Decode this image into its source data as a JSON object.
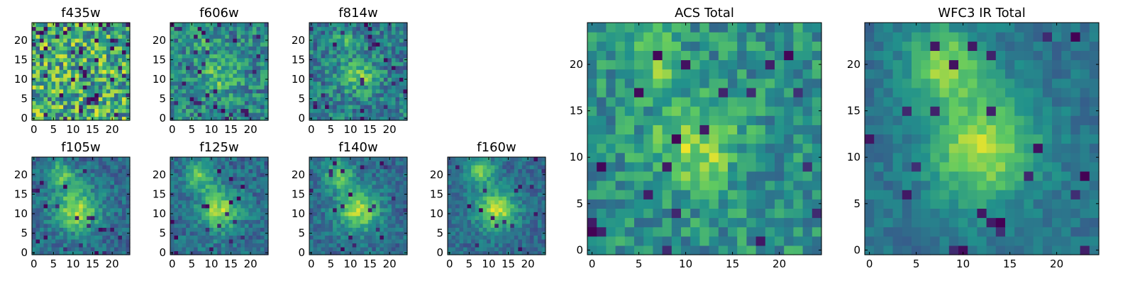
{
  "figure": {
    "colormap": [
      "#440154",
      "#3b528b",
      "#21918c",
      "#5ec962",
      "#fde725"
    ]
  },
  "chart_data": [
    {
      "type": "heatmap",
      "title": "f435w",
      "grid": [
        25,
        25
      ],
      "xticks": [
        "0",
        "5",
        "10",
        "15",
        "20"
      ],
      "yticks": [
        "0",
        "5",
        "10",
        "15",
        "20"
      ],
      "xlim": [
        -0.5,
        24.5
      ],
      "ylim": [
        -0.5,
        24.5
      ],
      "base": 0.62,
      "noise": 0.34,
      "dark_frac": 0.07,
      "blobs": []
    },
    {
      "type": "heatmap",
      "title": "f606w",
      "grid": [
        25,
        25
      ],
      "xticks": [
        "0",
        "5",
        "10",
        "15",
        "20"
      ],
      "yticks": [
        "0",
        "5",
        "10",
        "15",
        "20"
      ],
      "xlim": [
        -0.5,
        24.5
      ],
      "ylim": [
        -0.5,
        24.5
      ],
      "base": 0.45,
      "noise": 0.22,
      "dark_frac": 0.05,
      "blobs": [
        {
          "x": 12,
          "y": 11,
          "amp": 0.25,
          "sigma": 3.5
        },
        {
          "x": 8,
          "y": 20,
          "amp": 0.15,
          "sigma": 2.5
        }
      ]
    },
    {
      "type": "heatmap",
      "title": "f814w",
      "grid": [
        25,
        25
      ],
      "xticks": [
        "0",
        "5",
        "10",
        "15",
        "20"
      ],
      "yticks": [
        "0",
        "5",
        "10",
        "15",
        "20"
      ],
      "xlim": [
        -0.5,
        24.5
      ],
      "ylim": [
        -0.5,
        24.5
      ],
      "base": 0.42,
      "noise": 0.2,
      "dark_frac": 0.05,
      "blobs": [
        {
          "x": 12,
          "y": 11,
          "amp": 0.35,
          "sigma": 3.0
        },
        {
          "x": 8,
          "y": 20,
          "amp": 0.25,
          "sigma": 2.0
        }
      ]
    },
    {
      "type": "heatmap",
      "title": "f105w",
      "grid": [
        25,
        25
      ],
      "xticks": [
        "0",
        "5",
        "10",
        "15",
        "20"
      ],
      "yticks": [
        "0",
        "5",
        "10",
        "15",
        "20"
      ],
      "xlim": [
        -0.5,
        24.5
      ],
      "ylim": [
        -0.5,
        24.5
      ],
      "base": 0.35,
      "noise": 0.14,
      "dark_frac": 0.03,
      "blobs": [
        {
          "x": 11,
          "y": 11,
          "amp": 0.5,
          "sigma": 4.0
        },
        {
          "x": 7,
          "y": 20,
          "amp": 0.35,
          "sigma": 2.5
        }
      ]
    },
    {
      "type": "heatmap",
      "title": "f125w",
      "grid": [
        25,
        25
      ],
      "xticks": [
        "0",
        "5",
        "10",
        "15",
        "20"
      ],
      "yticks": [
        "0",
        "5",
        "10",
        "15",
        "20"
      ],
      "xlim": [
        -0.5,
        24.5
      ],
      "ylim": [
        -0.5,
        24.5
      ],
      "base": 0.35,
      "noise": 0.14,
      "dark_frac": 0.03,
      "blobs": [
        {
          "x": 12,
          "y": 11,
          "amp": 0.5,
          "sigma": 3.8
        },
        {
          "x": 7,
          "y": 20,
          "amp": 0.4,
          "sigma": 2.5
        }
      ]
    },
    {
      "type": "heatmap",
      "title": "f140w",
      "grid": [
        25,
        25
      ],
      "xticks": [
        "0",
        "5",
        "10",
        "15",
        "20"
      ],
      "yticks": [
        "0",
        "5",
        "10",
        "15",
        "20"
      ],
      "xlim": [
        -0.5,
        24.5
      ],
      "ylim": [
        -0.5,
        24.5
      ],
      "base": 0.35,
      "noise": 0.13,
      "dark_frac": 0.03,
      "blobs": [
        {
          "x": 12,
          "y": 11,
          "amp": 0.5,
          "sigma": 3.8
        },
        {
          "x": 7,
          "y": 20,
          "amp": 0.4,
          "sigma": 2.5
        }
      ]
    },
    {
      "type": "heatmap",
      "title": "f160w",
      "grid": [
        25,
        25
      ],
      "xticks": [
        "0",
        "5",
        "10",
        "15",
        "20"
      ],
      "yticks": [
        "0",
        "5",
        "10",
        "15",
        "20"
      ],
      "xlim": [
        -0.5,
        24.5
      ],
      "ylim": [
        -0.5,
        24.5
      ],
      "base": 0.35,
      "noise": 0.12,
      "dark_frac": 0.03,
      "blobs": [
        {
          "x": 12,
          "y": 11,
          "amp": 0.55,
          "sigma": 3.5
        },
        {
          "x": 8,
          "y": 21,
          "amp": 0.45,
          "sigma": 2.3
        }
      ]
    },
    {
      "type": "heatmap",
      "title": "ACS Total",
      "grid": [
        25,
        25
      ],
      "xticks": [
        "0",
        "5",
        "10",
        "15",
        "20"
      ],
      "yticks": [
        "0",
        "5",
        "10",
        "15",
        "20"
      ],
      "xlim": [
        -0.5,
        24.5
      ],
      "ylim": [
        -0.5,
        24.5
      ],
      "base": 0.5,
      "noise": 0.18,
      "dark_frac": 0.04,
      "blobs": [
        {
          "x": 11,
          "y": 11,
          "amp": 0.35,
          "sigma": 3.2
        },
        {
          "x": 7,
          "y": 20,
          "amp": 0.3,
          "sigma": 2.2
        }
      ]
    },
    {
      "type": "heatmap",
      "title": "WFC3 IR Total",
      "grid": [
        25,
        25
      ],
      "xticks": [
        "0",
        "5",
        "10",
        "15",
        "20"
      ],
      "yticks": [
        "0",
        "5",
        "10",
        "15",
        "20"
      ],
      "xlim": [
        -0.5,
        24.5
      ],
      "ylim": [
        -0.5,
        24.5
      ],
      "base": 0.38,
      "noise": 0.09,
      "dark_frac": 0.02,
      "blobs": [
        {
          "x": 12,
          "y": 11,
          "amp": 0.5,
          "sigma": 4.0
        },
        {
          "x": 8,
          "y": 20,
          "amp": 0.45,
          "sigma": 2.8
        }
      ]
    }
  ]
}
